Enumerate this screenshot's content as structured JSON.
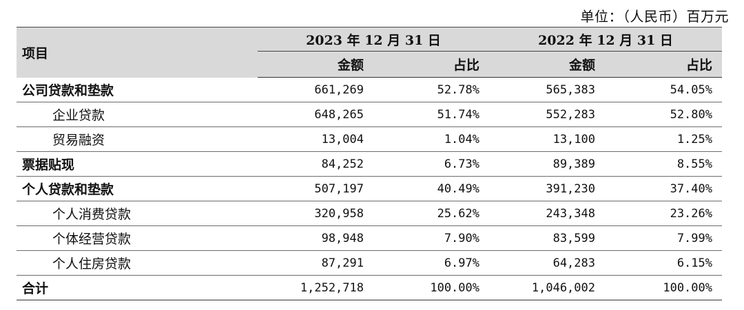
{
  "unit": "单位：（人民币）百万元",
  "header": {
    "item": "项目",
    "year_2023": "2023 年 12 月 31 日",
    "year_2022": "2022 年 12 月 31 日",
    "amount": "金额",
    "ratio": "占比"
  },
  "rows": [
    {
      "name": "公司贷款和垫款",
      "amt_2023": "661,269",
      "pct_2023": "52.78%",
      "amt_2022": "565,383",
      "pct_2022": "54.05%"
    },
    {
      "name": "企业贷款",
      "amt_2023": "648,265",
      "pct_2023": "51.74%",
      "amt_2022": "552,283",
      "pct_2022": "52.80%"
    },
    {
      "name": "贸易融资",
      "amt_2023": "13,004",
      "pct_2023": "1.04%",
      "amt_2022": "13,100",
      "pct_2022": "1.25%"
    },
    {
      "name": "票据贴现",
      "amt_2023": "84,252",
      "pct_2023": "6.73%",
      "amt_2022": "89,389",
      "pct_2022": "8.55%"
    },
    {
      "name": "个人贷款和垫款",
      "amt_2023": "507,197",
      "pct_2023": "40.49%",
      "amt_2022": "391,230",
      "pct_2022": "37.40%"
    },
    {
      "name": "个人消费贷款",
      "amt_2023": "320,958",
      "pct_2023": "25.62%",
      "amt_2022": "243,348",
      "pct_2022": "23.26%"
    },
    {
      "name": "个体经营贷款",
      "amt_2023": "98,948",
      "pct_2023": "7.90%",
      "amt_2022": "83,599",
      "pct_2022": "7.99%"
    },
    {
      "name": "个人住房贷款",
      "amt_2023": "87,291",
      "pct_2023": "6.97%",
      "amt_2022": "64,283",
      "pct_2022": "6.15%"
    },
    {
      "name": "合计",
      "amt_2023": "1,252,718",
      "pct_2023": "100.00%",
      "amt_2022": "1,046,002",
      "pct_2022": "100.00%"
    }
  ]
}
